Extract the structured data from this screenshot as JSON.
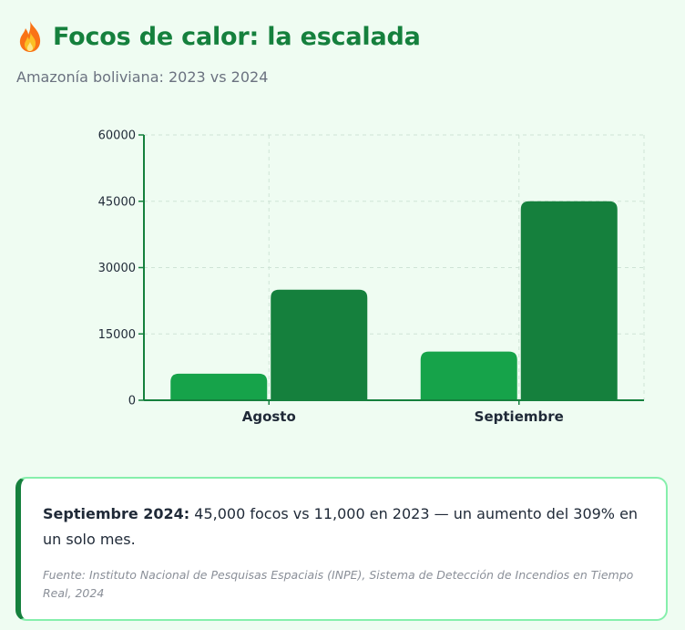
{
  "header": {
    "title": "Focos de calor: la escalada",
    "subtitle": "Amazonía boliviana: 2023 vs 2024",
    "icon": "fire-icon"
  },
  "chart_data": {
    "type": "bar",
    "categories": [
      "Agosto",
      "Septiembre"
    ],
    "series": [
      {
        "values": [
          6000,
          11000
        ],
        "color": "#16a34a"
      },
      {
        "values": [
          25000,
          45000
        ],
        "color": "#15803d"
      }
    ],
    "ylim": [
      0,
      60000
    ],
    "yticks": [
      "0",
      "15000",
      "30000",
      "45000",
      "60000"
    ],
    "grid": true
  },
  "card": {
    "highlight": "Septiembre 2024:",
    "text": " 45,000 focos vs 11,000 en 2023 — un aumento del 309% en un solo mes.",
    "source": "Fuente: Instituto Nacional de Pesquisas Espaciais (INPE), Sistema de Detección de Incendios en Tiempo Real, 2024"
  },
  "colors": {
    "accent": "#15803d",
    "background": "#effcf2",
    "card_border": "#86efac"
  }
}
